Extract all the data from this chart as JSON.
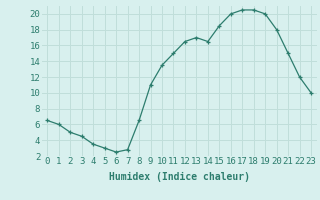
{
  "x": [
    0,
    1,
    2,
    3,
    4,
    5,
    6,
    7,
    8,
    9,
    10,
    11,
    12,
    13,
    14,
    15,
    16,
    17,
    18,
    19,
    20,
    21,
    22,
    23
  ],
  "y": [
    6.5,
    6.0,
    5.0,
    4.5,
    3.5,
    3.0,
    2.5,
    2.8,
    6.5,
    11.0,
    13.5,
    15.0,
    16.5,
    17.0,
    16.5,
    18.5,
    20.0,
    20.5,
    20.5,
    20.0,
    18.0,
    15.0,
    12.0,
    10.0
  ],
  "xlabel": "Humidex (Indice chaleur)",
  "ylim": [
    2,
    21
  ],
  "xlim": [
    -0.5,
    23.5
  ],
  "yticks": [
    2,
    4,
    6,
    8,
    10,
    12,
    14,
    16,
    18,
    20
  ],
  "xticks": [
    0,
    1,
    2,
    3,
    4,
    5,
    6,
    7,
    8,
    9,
    10,
    11,
    12,
    13,
    14,
    15,
    16,
    17,
    18,
    19,
    20,
    21,
    22,
    23
  ],
  "line_color": "#2d7d6e",
  "bg_color": "#d8f0ee",
  "grid_color": "#c0deda",
  "text_color": "#2d7d6e",
  "xlabel_fontsize": 7,
  "tick_fontsize": 6.5
}
